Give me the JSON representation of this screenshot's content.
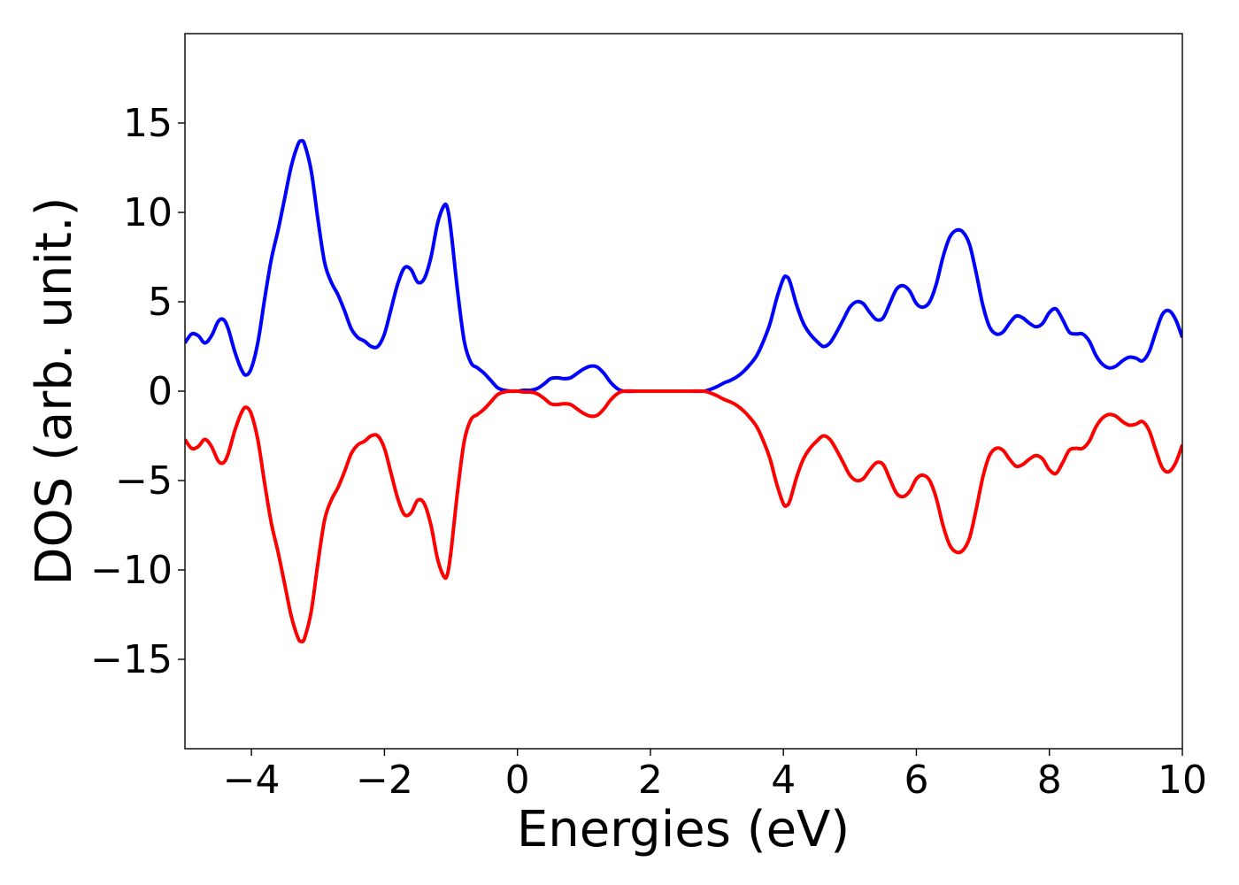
{
  "chart_data": {
    "type": "line",
    "title": "",
    "xlabel": "Energies (eV)",
    "ylabel": "DOS (arb. unit.)",
    "xlim": [
      -5,
      10
    ],
    "ylim": [
      -20,
      20
    ],
    "xticks": [
      -4,
      -2,
      0,
      2,
      4,
      6,
      8,
      10
    ],
    "yticks": [
      -15,
      -10,
      -5,
      0,
      5,
      10,
      15
    ],
    "xtick_labels": [
      "−4",
      "−2",
      "0",
      "2",
      "4",
      "6",
      "8",
      "10"
    ],
    "ytick_labels": [
      "−15",
      "−10",
      "−5",
      "0",
      "5",
      "10",
      "15"
    ],
    "grid": false,
    "legend": false,
    "series": [
      {
        "color": "#0000ff",
        "points": [
          [
            -5.0,
            2.7
          ],
          [
            -4.9,
            3.2
          ],
          [
            -4.8,
            3.1
          ],
          [
            -4.7,
            2.7
          ],
          [
            -4.6,
            3.1
          ],
          [
            -4.5,
            3.9
          ],
          [
            -4.42,
            4.0
          ],
          [
            -4.35,
            3.5
          ],
          [
            -4.25,
            2.2
          ],
          [
            -4.15,
            1.2
          ],
          [
            -4.08,
            0.9
          ],
          [
            -4.0,
            1.3
          ],
          [
            -3.9,
            2.8
          ],
          [
            -3.8,
            5.2
          ],
          [
            -3.7,
            7.4
          ],
          [
            -3.6,
            9.0
          ],
          [
            -3.5,
            10.8
          ],
          [
            -3.4,
            12.6
          ],
          [
            -3.3,
            13.8
          ],
          [
            -3.25,
            14.0
          ],
          [
            -3.2,
            13.8
          ],
          [
            -3.1,
            12.3
          ],
          [
            -3.0,
            9.6
          ],
          [
            -2.9,
            7.2
          ],
          [
            -2.8,
            6.1
          ],
          [
            -2.7,
            5.4
          ],
          [
            -2.6,
            4.5
          ],
          [
            -2.5,
            3.5
          ],
          [
            -2.4,
            3.0
          ],
          [
            -2.3,
            2.8
          ],
          [
            -2.2,
            2.5
          ],
          [
            -2.1,
            2.5
          ],
          [
            -2.0,
            3.2
          ],
          [
            -1.9,
            4.6
          ],
          [
            -1.8,
            6.0
          ],
          [
            -1.7,
            6.9
          ],
          [
            -1.6,
            6.8
          ],
          [
            -1.5,
            6.1
          ],
          [
            -1.4,
            6.3
          ],
          [
            -1.3,
            7.5
          ],
          [
            -1.2,
            9.4
          ],
          [
            -1.1,
            10.4
          ],
          [
            -1.05,
            10.2
          ],
          [
            -1.0,
            9.0
          ],
          [
            -0.9,
            5.6
          ],
          [
            -0.8,
            2.8
          ],
          [
            -0.7,
            1.6
          ],
          [
            -0.6,
            1.3
          ],
          [
            -0.5,
            1.0
          ],
          [
            -0.4,
            0.6
          ],
          [
            -0.3,
            0.2
          ],
          [
            -0.2,
            0.05
          ],
          [
            -0.1,
            0.0
          ],
          [
            0.0,
            0.0
          ],
          [
            0.1,
            0.05
          ],
          [
            0.2,
            0.05
          ],
          [
            0.3,
            0.15
          ],
          [
            0.4,
            0.4
          ],
          [
            0.5,
            0.7
          ],
          [
            0.6,
            0.75
          ],
          [
            0.7,
            0.7
          ],
          [
            0.8,
            0.75
          ],
          [
            0.9,
            1.0
          ],
          [
            1.0,
            1.25
          ],
          [
            1.1,
            1.4
          ],
          [
            1.2,
            1.35
          ],
          [
            1.3,
            1.0
          ],
          [
            1.4,
            0.5
          ],
          [
            1.5,
            0.15
          ],
          [
            1.6,
            0.0
          ],
          [
            1.8,
            0.0
          ],
          [
            2.0,
            0.0
          ],
          [
            2.2,
            0.0
          ],
          [
            2.4,
            0.0
          ],
          [
            2.6,
            0.0
          ],
          [
            2.8,
            0.0
          ],
          [
            2.9,
            0.1
          ],
          [
            3.0,
            0.25
          ],
          [
            3.1,
            0.45
          ],
          [
            3.2,
            0.6
          ],
          [
            3.3,
            0.8
          ],
          [
            3.4,
            1.1
          ],
          [
            3.5,
            1.5
          ],
          [
            3.6,
            2.0
          ],
          [
            3.7,
            2.8
          ],
          [
            3.8,
            3.8
          ],
          [
            3.9,
            5.2
          ],
          [
            4.0,
            6.3
          ],
          [
            4.05,
            6.4
          ],
          [
            4.1,
            6.1
          ],
          [
            4.2,
            4.8
          ],
          [
            4.3,
            3.8
          ],
          [
            4.4,
            3.2
          ],
          [
            4.5,
            2.8
          ],
          [
            4.6,
            2.5
          ],
          [
            4.7,
            2.7
          ],
          [
            4.8,
            3.3
          ],
          [
            4.9,
            4.0
          ],
          [
            5.0,
            4.7
          ],
          [
            5.1,
            5.0
          ],
          [
            5.2,
            4.9
          ],
          [
            5.3,
            4.4
          ],
          [
            5.4,
            4.0
          ],
          [
            5.5,
            4.1
          ],
          [
            5.6,
            4.9
          ],
          [
            5.7,
            5.7
          ],
          [
            5.8,
            5.9
          ],
          [
            5.9,
            5.6
          ],
          [
            6.0,
            4.9
          ],
          [
            6.1,
            4.7
          ],
          [
            6.2,
            5.0
          ],
          [
            6.3,
            6.0
          ],
          [
            6.4,
            7.5
          ],
          [
            6.5,
            8.6
          ],
          [
            6.6,
            9.0
          ],
          [
            6.7,
            8.9
          ],
          [
            6.8,
            8.2
          ],
          [
            6.9,
            6.6
          ],
          [
            7.0,
            4.8
          ],
          [
            7.1,
            3.6
          ],
          [
            7.2,
            3.2
          ],
          [
            7.3,
            3.3
          ],
          [
            7.4,
            3.8
          ],
          [
            7.5,
            4.2
          ],
          [
            7.6,
            4.1
          ],
          [
            7.7,
            3.8
          ],
          [
            7.8,
            3.6
          ],
          [
            7.9,
            3.8
          ],
          [
            8.0,
            4.4
          ],
          [
            8.1,
            4.6
          ],
          [
            8.2,
            4.0
          ],
          [
            8.3,
            3.3
          ],
          [
            8.4,
            3.2
          ],
          [
            8.5,
            3.2
          ],
          [
            8.6,
            2.8
          ],
          [
            8.7,
            2.0
          ],
          [
            8.8,
            1.5
          ],
          [
            8.9,
            1.3
          ],
          [
            9.0,
            1.4
          ],
          [
            9.1,
            1.7
          ],
          [
            9.2,
            1.9
          ],
          [
            9.3,
            1.85
          ],
          [
            9.4,
            1.7
          ],
          [
            9.5,
            2.2
          ],
          [
            9.6,
            3.3
          ],
          [
            9.7,
            4.3
          ],
          [
            9.8,
            4.5
          ],
          [
            9.9,
            4.0
          ],
          [
            10.0,
            3.0
          ]
        ]
      },
      {
        "color": "#ff0000",
        "points": [
          [
            -5.0,
            -2.7
          ],
          [
            -4.9,
            -3.2
          ],
          [
            -4.8,
            -3.1
          ],
          [
            -4.7,
            -2.7
          ],
          [
            -4.6,
            -3.1
          ],
          [
            -4.5,
            -3.9
          ],
          [
            -4.42,
            -4.0
          ],
          [
            -4.35,
            -3.5
          ],
          [
            -4.25,
            -2.2
          ],
          [
            -4.15,
            -1.2
          ],
          [
            -4.08,
            -0.9
          ],
          [
            -4.0,
            -1.3
          ],
          [
            -3.9,
            -2.8
          ],
          [
            -3.8,
            -5.2
          ],
          [
            -3.7,
            -7.4
          ],
          [
            -3.6,
            -9.0
          ],
          [
            -3.5,
            -10.8
          ],
          [
            -3.4,
            -12.6
          ],
          [
            -3.3,
            -13.8
          ],
          [
            -3.25,
            -14.0
          ],
          [
            -3.2,
            -13.8
          ],
          [
            -3.1,
            -12.3
          ],
          [
            -3.0,
            -9.6
          ],
          [
            -2.9,
            -7.2
          ],
          [
            -2.8,
            -6.1
          ],
          [
            -2.7,
            -5.4
          ],
          [
            -2.6,
            -4.5
          ],
          [
            -2.5,
            -3.5
          ],
          [
            -2.4,
            -3.0
          ],
          [
            -2.3,
            -2.8
          ],
          [
            -2.2,
            -2.5
          ],
          [
            -2.1,
            -2.5
          ],
          [
            -2.0,
            -3.2
          ],
          [
            -1.9,
            -4.6
          ],
          [
            -1.8,
            -6.0
          ],
          [
            -1.7,
            -6.9
          ],
          [
            -1.6,
            -6.8
          ],
          [
            -1.5,
            -6.1
          ],
          [
            -1.4,
            -6.3
          ],
          [
            -1.3,
            -7.5
          ],
          [
            -1.2,
            -9.4
          ],
          [
            -1.1,
            -10.4
          ],
          [
            -1.05,
            -10.2
          ],
          [
            -1.0,
            -9.0
          ],
          [
            -0.9,
            -5.6
          ],
          [
            -0.8,
            -2.8
          ],
          [
            -0.7,
            -1.6
          ],
          [
            -0.6,
            -1.3
          ],
          [
            -0.5,
            -1.0
          ],
          [
            -0.4,
            -0.6
          ],
          [
            -0.3,
            -0.2
          ],
          [
            -0.2,
            -0.05
          ],
          [
            -0.1,
            0.0
          ],
          [
            0.0,
            0.0
          ],
          [
            0.1,
            -0.05
          ],
          [
            0.2,
            -0.05
          ],
          [
            0.3,
            -0.15
          ],
          [
            0.4,
            -0.4
          ],
          [
            0.5,
            -0.7
          ],
          [
            0.6,
            -0.75
          ],
          [
            0.7,
            -0.7
          ],
          [
            0.8,
            -0.75
          ],
          [
            0.9,
            -1.0
          ],
          [
            1.0,
            -1.25
          ],
          [
            1.1,
            -1.4
          ],
          [
            1.2,
            -1.35
          ],
          [
            1.3,
            -1.0
          ],
          [
            1.4,
            -0.5
          ],
          [
            1.5,
            -0.15
          ],
          [
            1.6,
            0.0
          ],
          [
            1.8,
            0.0
          ],
          [
            2.0,
            0.0
          ],
          [
            2.2,
            0.0
          ],
          [
            2.4,
            0.0
          ],
          [
            2.6,
            0.0
          ],
          [
            2.8,
            0.0
          ],
          [
            2.9,
            -0.1
          ],
          [
            3.0,
            -0.25
          ],
          [
            3.1,
            -0.45
          ],
          [
            3.2,
            -0.6
          ],
          [
            3.3,
            -0.8
          ],
          [
            3.4,
            -1.1
          ],
          [
            3.5,
            -1.5
          ],
          [
            3.6,
            -2.0
          ],
          [
            3.7,
            -2.8
          ],
          [
            3.8,
            -3.8
          ],
          [
            3.9,
            -5.2
          ],
          [
            4.0,
            -6.3
          ],
          [
            4.05,
            -6.4
          ],
          [
            4.1,
            -6.1
          ],
          [
            4.2,
            -4.8
          ],
          [
            4.3,
            -3.8
          ],
          [
            4.4,
            -3.2
          ],
          [
            4.5,
            -2.8
          ],
          [
            4.6,
            -2.5
          ],
          [
            4.7,
            -2.7
          ],
          [
            4.8,
            -3.3
          ],
          [
            4.9,
            -4.0
          ],
          [
            5.0,
            -4.7
          ],
          [
            5.1,
            -5.0
          ],
          [
            5.2,
            -4.9
          ],
          [
            5.3,
            -4.4
          ],
          [
            5.4,
            -4.0
          ],
          [
            5.5,
            -4.1
          ],
          [
            5.6,
            -4.9
          ],
          [
            5.7,
            -5.7
          ],
          [
            5.8,
            -5.9
          ],
          [
            5.9,
            -5.6
          ],
          [
            6.0,
            -4.9
          ],
          [
            6.1,
            -4.7
          ],
          [
            6.2,
            -5.0
          ],
          [
            6.3,
            -6.0
          ],
          [
            6.4,
            -7.5
          ],
          [
            6.5,
            -8.6
          ],
          [
            6.6,
            -9.0
          ],
          [
            6.7,
            -8.9
          ],
          [
            6.8,
            -8.2
          ],
          [
            6.9,
            -6.6
          ],
          [
            7.0,
            -4.8
          ],
          [
            7.1,
            -3.6
          ],
          [
            7.2,
            -3.2
          ],
          [
            7.3,
            -3.3
          ],
          [
            7.4,
            -3.8
          ],
          [
            7.5,
            -4.2
          ],
          [
            7.6,
            -4.1
          ],
          [
            7.7,
            -3.8
          ],
          [
            7.8,
            -3.6
          ],
          [
            7.9,
            -3.8
          ],
          [
            8.0,
            -4.4
          ],
          [
            8.1,
            -4.6
          ],
          [
            8.2,
            -4.0
          ],
          [
            8.3,
            -3.3
          ],
          [
            8.4,
            -3.2
          ],
          [
            8.5,
            -3.2
          ],
          [
            8.6,
            -2.8
          ],
          [
            8.7,
            -2.0
          ],
          [
            8.8,
            -1.5
          ],
          [
            8.9,
            -1.3
          ],
          [
            9.0,
            -1.4
          ],
          [
            9.1,
            -1.7
          ],
          [
            9.2,
            -1.9
          ],
          [
            9.3,
            -1.85
          ],
          [
            9.4,
            -1.7
          ],
          [
            9.5,
            -2.2
          ],
          [
            9.6,
            -3.3
          ],
          [
            9.7,
            -4.3
          ],
          [
            9.8,
            -4.5
          ],
          [
            9.9,
            -4.0
          ],
          [
            10.0,
            -3.0
          ]
        ]
      }
    ]
  }
}
